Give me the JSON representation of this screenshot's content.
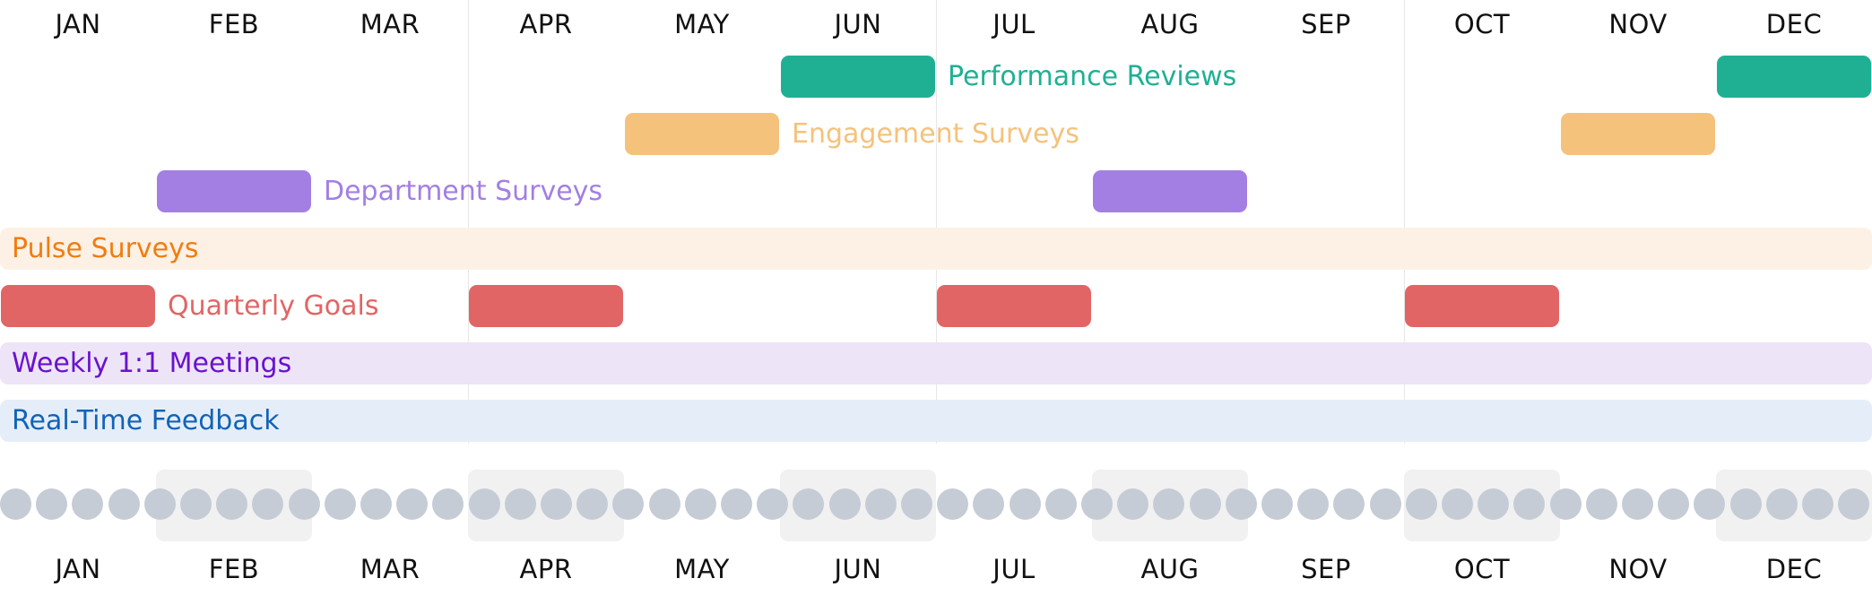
{
  "months": [
    "JAN",
    "FEB",
    "MAR",
    "APR",
    "MAY",
    "JUN",
    "JUL",
    "AUG",
    "SEP",
    "OCT",
    "NOV",
    "DEC"
  ],
  "weekly_dots": 52,
  "colors": {
    "month_text": "#111111",
    "quarter_line": "#e6e6e6",
    "week_dot": "#c6ccd6",
    "week_shade": "#f1f1f1"
  },
  "timeline": [
    {
      "key": "performance",
      "label": "Performance Reviews",
      "bar_color": "#1fb094",
      "label_color": "#1fb094",
      "segments": [
        {
          "start_month": 6,
          "end_month": 6
        },
        {
          "start_month": 12,
          "end_month": 12
        }
      ]
    },
    {
      "key": "engagement",
      "label": "Engagement Surveys",
      "bar_color": "#f5c27c",
      "label_color": "#f5c27c",
      "segments": [
        {
          "start_month": 5,
          "end_month": 5
        },
        {
          "start_month": 11,
          "end_month": 11
        }
      ]
    },
    {
      "key": "department",
      "label": "Department Surveys",
      "bar_color": "#a37fe3",
      "label_color": "#a37fe3",
      "segments": [
        {
          "start_month": 2,
          "end_month": 2
        },
        {
          "start_month": 8,
          "end_month": 8
        }
      ]
    },
    {
      "key": "pulse",
      "label": "Pulse Surveys",
      "band_color": "#fdf1e6",
      "label_color": "#f07d10",
      "segments": [
        {
          "start_month": 1,
          "end_month": 12
        }
      ]
    },
    {
      "key": "quarterly",
      "label": "Quarterly Goals",
      "bar_color": "#e26565",
      "label_color": "#e26565",
      "segments": [
        {
          "start_month": 1,
          "end_month": 1
        },
        {
          "start_month": 4,
          "end_month": 4
        },
        {
          "start_month": 7,
          "end_month": 7
        },
        {
          "start_month": 10,
          "end_month": 10
        }
      ]
    },
    {
      "key": "weekly",
      "label": "Weekly 1:1 Meetings",
      "band_color": "#ede4f7",
      "label_color": "#6a12cf",
      "segments": [
        {
          "start_month": 1,
          "end_month": 12
        }
      ]
    },
    {
      "key": "realtime",
      "label": "Real-Time Feedback",
      "band_color": "#e5eef8",
      "label_color": "#1163b8",
      "segments": [
        {
          "start_month": 1,
          "end_month": 12
        }
      ]
    }
  ]
}
